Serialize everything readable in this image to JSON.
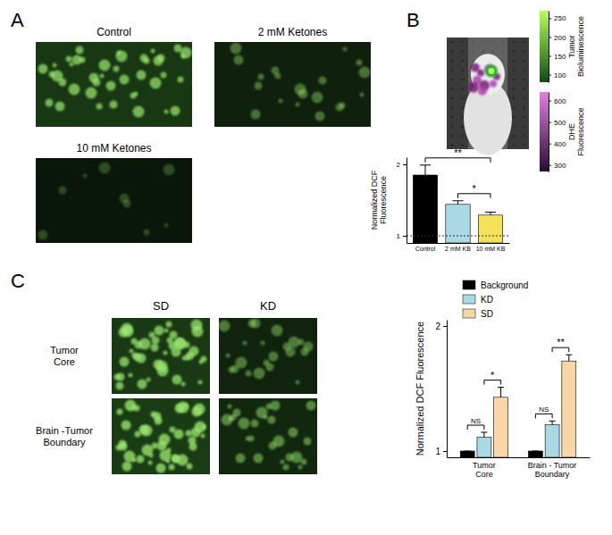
{
  "chart_data": [
    {
      "type": "image_grid",
      "panel": "A",
      "titles": [
        "Control",
        "2 mM Ketones",
        "10 mM Ketones"
      ]
    },
    {
      "type": "bar",
      "y_label": "Normalized DCF Fluorescence",
      "categories": [
        "Control",
        "2 mM KB",
        "10 mM KB"
      ],
      "values": [
        1.85,
        1.44,
        1.29
      ],
      "errors": [
        0.14,
        0.05,
        0.04
      ],
      "colors": [
        "#000000",
        "#a9d9e3",
        "#f3e25a"
      ],
      "ylim": [
        0.9,
        2.1
      ],
      "yticks": [
        1,
        2
      ],
      "reference_line": 1,
      "annotations": [
        {
          "text": "**",
          "from": 0,
          "to": 2
        },
        {
          "text": "*",
          "from": 1,
          "to": 2
        }
      ]
    },
    {
      "type": "image",
      "panel": "B",
      "colorbars": [
        {
          "label": "Tumor Bioluminescence",
          "range": [
            80,
            270
          ],
          "ticks": [
            100,
            150,
            200,
            250
          ],
          "colors": [
            "#0f4d12",
            "#b8ff5c"
          ]
        },
        {
          "label": "DHE Fluorescence",
          "range": [
            270,
            640
          ],
          "ticks": [
            300,
            400,
            500,
            600
          ],
          "colors": [
            "#2a0a33",
            "#e27fe0"
          ]
        }
      ]
    },
    {
      "type": "image_grid",
      "panel": "C",
      "columns": [
        "SD",
        "KD"
      ],
      "rows": [
        "Tumor Core",
        "Brain -Tumor Boundary"
      ]
    },
    {
      "type": "bar",
      "y_label": "Normalized DCF Fluorescence",
      "categories": [
        "Tumor Core",
        "Brain - Tumor Boundary"
      ],
      "series": [
        {
          "name": "Background",
          "color": "#000000",
          "values": [
            1,
            1
          ],
          "errors": [
            0,
            0
          ]
        },
        {
          "name": "KD",
          "color": "#a9d9e3",
          "values": [
            1.11,
            1.21
          ],
          "errors": [
            0.04,
            0.03
          ]
        },
        {
          "name": "SD",
          "color": "#f8d6a8",
          "values": [
            1.43,
            1.72
          ],
          "errors": [
            0.08,
            0.05
          ]
        }
      ],
      "ylim": [
        0.95,
        2.05
      ],
      "yticks": [
        1,
        2
      ],
      "legend": "upper left",
      "annotations": [
        {
          "text": "NS",
          "category": 0,
          "from": 0,
          "to": 1
        },
        {
          "text": "*",
          "category": 0,
          "from": 1,
          "to": 2
        },
        {
          "text": "NS",
          "category": 1,
          "from": 0,
          "to": 1
        },
        {
          "text": "**",
          "category": 1,
          "from": 1,
          "to": 2
        }
      ]
    }
  ]
}
